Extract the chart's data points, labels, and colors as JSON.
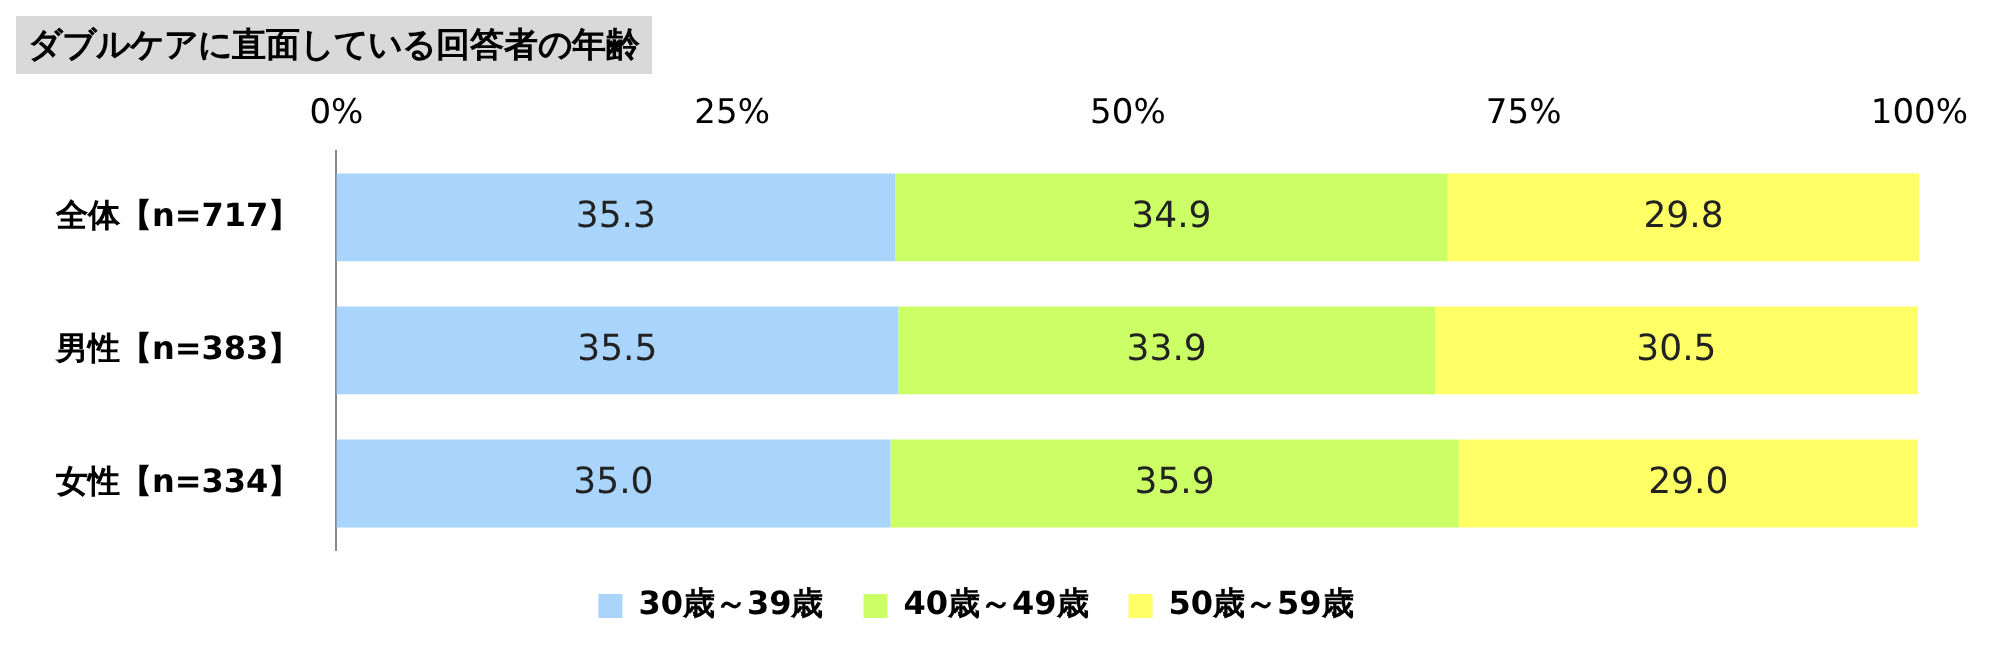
{
  "chart_data": {
    "type": "bar",
    "title": "ダブルケアに直面している回答者の年齢",
    "orientation": "horizontal",
    "stacked": true,
    "categories": [
      "全体【n=717】",
      "男性【n=383】",
      "女性【n=334】"
    ],
    "series": [
      {
        "name": "30歳～39歳",
        "color": "#a9d4fb",
        "values": [
          35.3,
          35.5,
          35.0
        ],
        "value_labels": [
          "35.3",
          "35.5",
          "35.0"
        ]
      },
      {
        "name": "40歳～49歳",
        "color": "#ccff66",
        "values": [
          34.9,
          33.9,
          35.9
        ],
        "value_labels": [
          "34.9",
          "33.9",
          "35.9"
        ]
      },
      {
        "name": "50歳～59歳",
        "color": "#ffff66",
        "values": [
          29.8,
          30.5,
          29.0
        ],
        "value_labels": [
          "29.8",
          "30.5",
          "29.0"
        ]
      }
    ],
    "xlim": [
      0,
      100
    ],
    "xticks": [
      {
        "value": 0,
        "label": "0%"
      },
      {
        "value": 25,
        "label": "25%"
      },
      {
        "value": 50,
        "label": "50%"
      },
      {
        "value": 75,
        "label": "75%"
      },
      {
        "value": 100,
        "label": "100%"
      }
    ],
    "grid": false,
    "legend": "bottom"
  }
}
